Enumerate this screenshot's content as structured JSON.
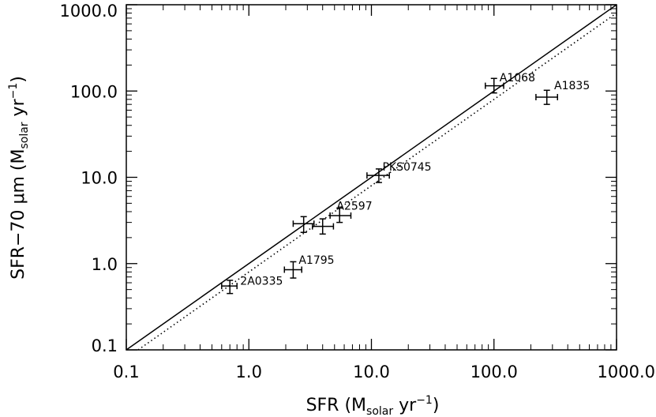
{
  "chart_data": {
    "type": "scatter",
    "xlabel": {
      "main": "SFR",
      "paren_open": "(M",
      "sub": "solar",
      "mid": " yr",
      "sup": "−1",
      "paren_close": ")"
    },
    "ylabel": {
      "main": "SFR−70 ",
      "mu": "μ",
      "unit": "m",
      "paren_open": "(M",
      "sub": "solar",
      "mid": " yr",
      "sup": "−1",
      "paren_close": ")"
    },
    "x_scale": "log",
    "y_scale": "log",
    "xlim": [
      0.1,
      1000
    ],
    "ylim": [
      0.1,
      1000
    ],
    "x_ticks": [
      "0.1",
      "1.0",
      "10.0",
      "100.0",
      "1000.0"
    ],
    "y_ticks": [
      "0.1",
      "1.0",
      "10.0",
      "100.0",
      "1000.0"
    ],
    "grid": false,
    "points": [
      {
        "x": 0.7,
        "y": 0.55,
        "xerr": [
          0.6,
          0.8
        ],
        "yerr": [
          0.45,
          0.64
        ],
        "label": ""
      },
      {
        "x": 2.3,
        "y": 0.85,
        "xerr": [
          1.95,
          2.7
        ],
        "yerr": [
          0.68,
          1.05
        ],
        "label": ""
      },
      {
        "x": 2.8,
        "y": 2.9,
        "xerr": [
          2.3,
          3.4
        ],
        "yerr": [
          2.3,
          3.5
        ],
        "label": ""
      },
      {
        "x": 4.0,
        "y": 2.7,
        "xerr": [
          3.3,
          4.9
        ],
        "yerr": [
          2.2,
          3.3
        ],
        "label": ""
      },
      {
        "x": 5.5,
        "y": 3.6,
        "xerr": [
          4.6,
          6.8
        ],
        "yerr": [
          3.0,
          4.4
        ],
        "label": ""
      },
      {
        "x": 11.5,
        "y": 10.5,
        "xerr": [
          9.2,
          14.0
        ],
        "yerr": [
          8.7,
          12.5
        ],
        "label": ""
      },
      {
        "x": 100,
        "y": 115,
        "xerr": [
          85,
          120
        ],
        "yerr": [
          95,
          140
        ],
        "label": ""
      },
      {
        "x": 270,
        "y": 85,
        "xerr": [
          220,
          330
        ],
        "yerr": [
          70,
          102
        ],
        "label": ""
      }
    ],
    "annotations": [
      {
        "text": "2A0335",
        "x": 0.85,
        "y": 0.57
      },
      {
        "text": "A1795",
        "x": 2.55,
        "y": 1.0
      },
      {
        "text": "A2597",
        "x": 5.2,
        "y": 4.2
      },
      {
        "text": "PKS0745",
        "x": 12.3,
        "y": 12.0
      },
      {
        "text": "A1068",
        "x": 111,
        "y": 130
      },
      {
        "text": "A1835",
        "x": 310,
        "y": 105
      }
    ],
    "lines": [
      {
        "style": "solid",
        "relation": "y = x"
      },
      {
        "style": "dotted",
        "relation": "y = 0.8x"
      }
    ]
  }
}
